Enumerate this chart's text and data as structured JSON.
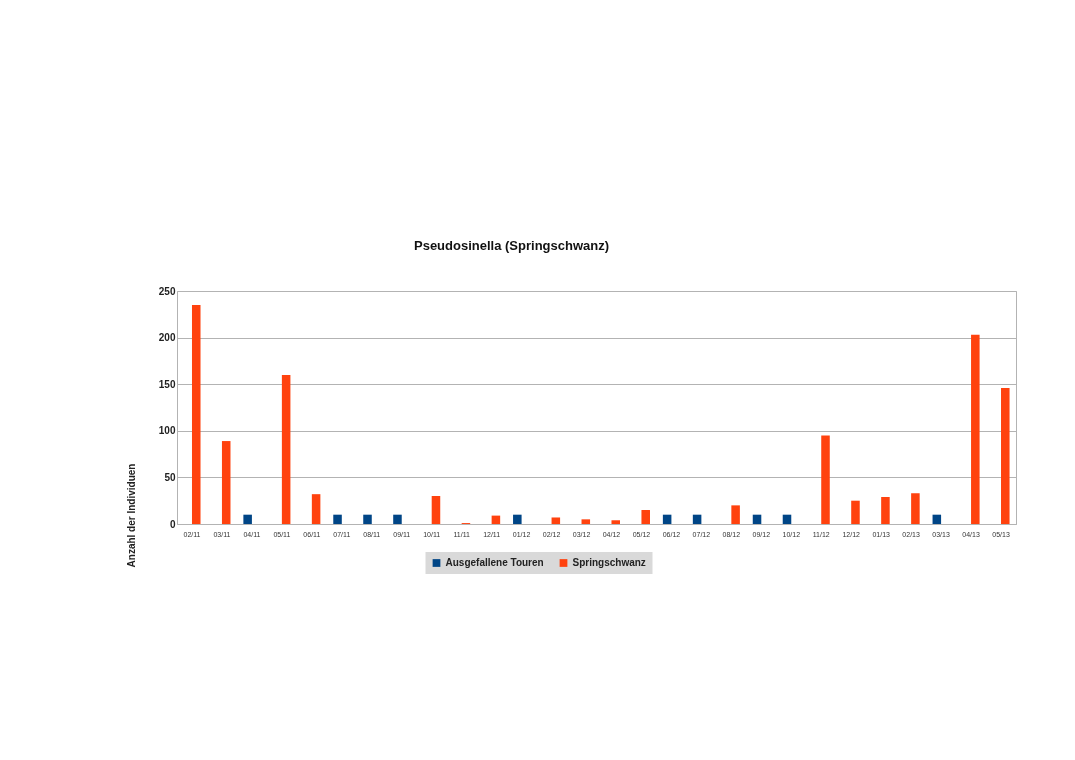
{
  "chart_data": {
    "type": "bar",
    "title": "Pseudosinella (Springschwanz)",
    "ylabel": "Anzahl der Individuen",
    "categories": [
      "02/11",
      "03/11",
      "04/11",
      "05/11",
      "06/11",
      "07/11",
      "08/11",
      "09/11",
      "10/11",
      "11/11",
      "12/11",
      "01/12",
      "02/12",
      "03/12",
      "04/12",
      "05/12",
      "06/12",
      "07/12",
      "08/12",
      "09/12",
      "10/12",
      "11/12",
      "12/12",
      "01/13",
      "02/13",
      "03/13",
      "04/13",
      "05/13"
    ],
    "series": [
      {
        "name": "Ausgefallene Touren",
        "color": "#004586",
        "values": [
          null,
          null,
          10,
          null,
          null,
          10,
          10,
          10,
          null,
          null,
          null,
          10,
          null,
          null,
          null,
          null,
          10,
          10,
          null,
          10,
          10,
          null,
          null,
          null,
          null,
          10,
          null,
          null
        ]
      },
      {
        "name": "Springschwanz",
        "color": "#ff420e",
        "values": [
          235,
          89,
          null,
          160,
          32,
          null,
          null,
          null,
          30,
          1,
          9,
          null,
          7,
          5,
          4,
          15,
          null,
          null,
          20,
          null,
          null,
          95,
          25,
          29,
          33,
          null,
          203,
          146
        ]
      }
    ],
    "ylim": [
      0,
      250
    ],
    "yticks": [
      0,
      50,
      100,
      150,
      200,
      250
    ],
    "grid": "y",
    "legend": "bottom"
  }
}
